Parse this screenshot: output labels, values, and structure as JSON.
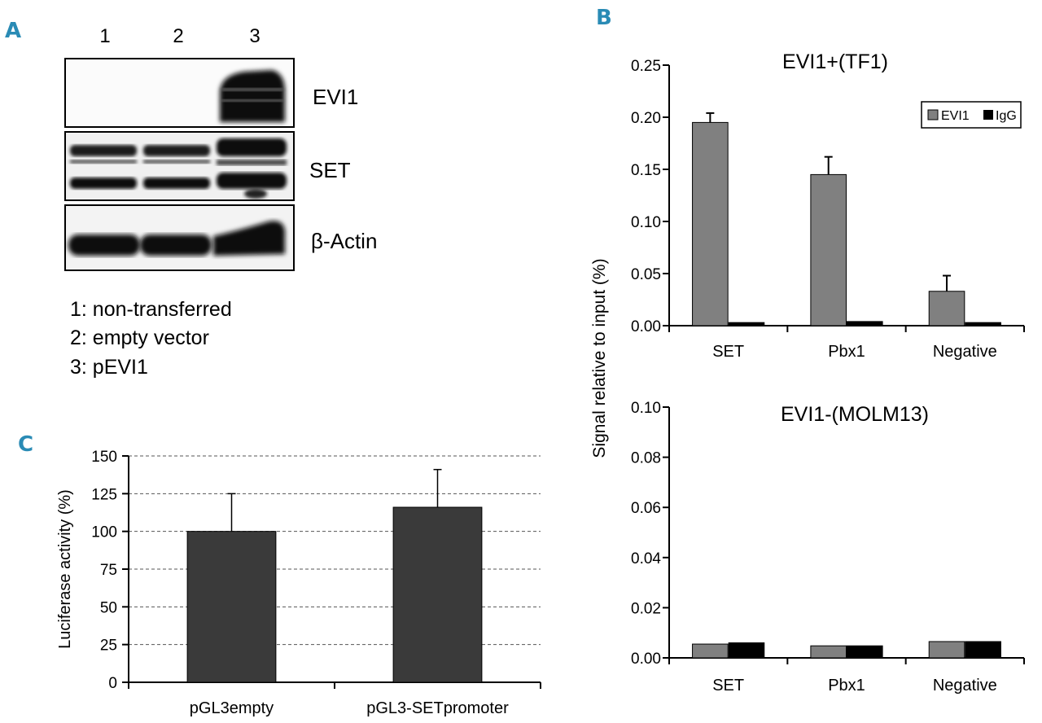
{
  "panels": {
    "a": {
      "letter": "A",
      "lane_numbers": [
        "1",
        "2",
        "3"
      ],
      "blot_labels": [
        "EVI1",
        "SET",
        "β-Actin"
      ],
      "lane_legend": [
        "1: non-transferred",
        "2: empty vector",
        "3: pEVI1"
      ]
    },
    "b": {
      "letter": "B",
      "shared_ylabel": "Signal relative to input (%)"
    },
    "c": {
      "letter": "C"
    }
  },
  "colors": {
    "accent": "#2a8bb5",
    "evi1": "#808080",
    "igg": "#000000",
    "luc": "#3a3a3a"
  },
  "chart_data": [
    {
      "id": "evi1_tf1",
      "type": "bar",
      "title": "EVI1+(TF1)",
      "categories": [
        "SET",
        "Pbx1",
        "Negative"
      ],
      "series": [
        {
          "name": "EVI1",
          "values": [
            0.195,
            0.145,
            0.033
          ],
          "errors": [
            0.009,
            0.017,
            0.015
          ]
        },
        {
          "name": "IgG",
          "values": [
            0.003,
            0.004,
            0.003
          ]
        }
      ],
      "ylim": [
        0,
        0.25
      ],
      "yticks": [
        "0.00",
        "0.05",
        "0.10",
        "0.15",
        "0.20",
        "0.25"
      ],
      "legend": "top-right",
      "grid": false
    },
    {
      "id": "evi1_molm13",
      "type": "bar",
      "title": "EVI1-(MOLM13)",
      "categories": [
        "SET",
        "Pbx1",
        "Negative"
      ],
      "series": [
        {
          "values": [
            0.0055,
            0.0048,
            0.0065
          ]
        },
        {
          "values": [
            0.006,
            0.0048,
            0.0065
          ]
        }
      ],
      "ylim": [
        0,
        0.1
      ],
      "yticks": [
        "0.00",
        "0.02",
        "0.04",
        "0.06",
        "0.08",
        "0.10"
      ],
      "grid": false
    },
    {
      "id": "luciferase",
      "type": "bar",
      "categories": [
        "pGL3empty",
        "pGL3-SETpromoter"
      ],
      "values": [
        100,
        116
      ],
      "errors": [
        25,
        25
      ],
      "ylabel": "Luciferase activity (%)",
      "ylim": [
        0,
        150
      ],
      "yticks": [
        "0",
        "25",
        "50",
        "75",
        "100",
        "125",
        "150"
      ],
      "grid": true
    }
  ]
}
